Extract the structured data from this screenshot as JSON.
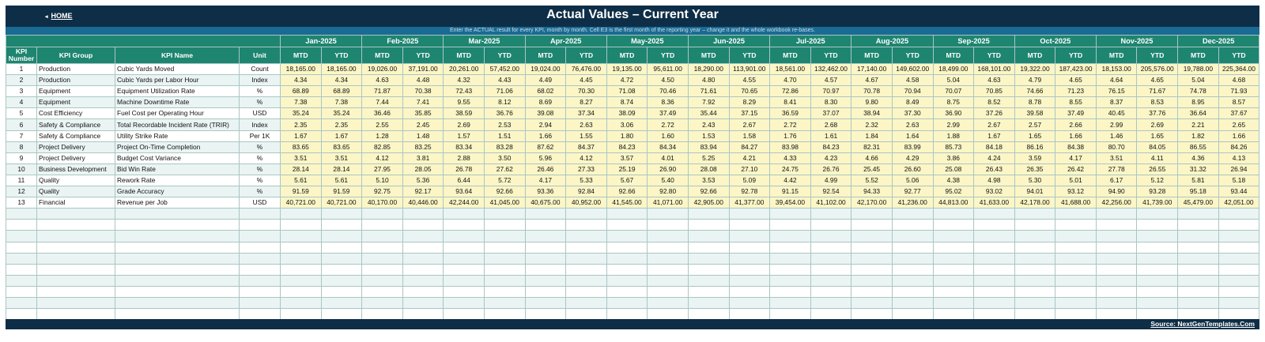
{
  "header": {
    "home_arrow": "◂",
    "home_label": "HOME",
    "title": "Actual Values  –  Current Year",
    "instructions": "Enter the ACTUAL result for every KPI, month by month. Cell E3 is the first month of the reporting year – change it and the whole workbook re-bases."
  },
  "table": {
    "col_kpi_number": "KPI Number",
    "col_kpi_group": "KPI Group",
    "col_kpi_name": "KPI Name",
    "col_unit": "Unit",
    "mtd_label": "MTD",
    "ytd_label": "YTD",
    "months": [
      "Jan-2025",
      "Feb-2025",
      "Mar-2025",
      "Apr-2025",
      "May-2025",
      "Jun-2025",
      "Jul-2025",
      "Aug-2025",
      "Sep-2025",
      "Oct-2025",
      "Nov-2025",
      "Dec-2025"
    ],
    "rows": [
      {
        "num": "1",
        "group": "Production",
        "name": "Cubic Yards Moved",
        "unit": "Count",
        "values": [
          "18,165.00",
          "18,165.00",
          "19,026.00",
          "37,191.00",
          "20,261.00",
          "57,452.00",
          "19,024.00",
          "76,476.00",
          "19,135.00",
          "95,611.00",
          "18,290.00",
          "113,901.00",
          "18,561.00",
          "132,462.00",
          "17,140.00",
          "149,602.00",
          "18,499.00",
          "168,101.00",
          "19,322.00",
          "187,423.00",
          "18,153.00",
          "205,576.00",
          "19,788.00",
          "225,364.00"
        ]
      },
      {
        "num": "2",
        "group": "Production",
        "name": "Cubic Yards per Labor Hour",
        "unit": "Index",
        "values": [
          "4.34",
          "4.34",
          "4.63",
          "4.48",
          "4.32",
          "4.43",
          "4.49",
          "4.45",
          "4.72",
          "4.50",
          "4.80",
          "4.55",
          "4.70",
          "4.57",
          "4.67",
          "4.58",
          "5.04",
          "4.63",
          "4.79",
          "4.65",
          "4.64",
          "4.65",
          "5.04",
          "4.68"
        ]
      },
      {
        "num": "3",
        "group": "Equipment",
        "name": "Equipment Utilization Rate",
        "unit": "%",
        "values": [
          "68.89",
          "68.89",
          "71.87",
          "70.38",
          "72.43",
          "71.06",
          "68.02",
          "70.30",
          "71.08",
          "70.46",
          "71.61",
          "70.65",
          "72.86",
          "70.97",
          "70.78",
          "70.94",
          "70.07",
          "70.85",
          "74.66",
          "71.23",
          "76.15",
          "71.67",
          "74.78",
          "71.93"
        ]
      },
      {
        "num": "4",
        "group": "Equipment",
        "name": "Machine Downtime Rate",
        "unit": "%",
        "values": [
          "7.38",
          "7.38",
          "7.44",
          "7.41",
          "9.55",
          "8.12",
          "8.69",
          "8.27",
          "8.74",
          "8.36",
          "7.92",
          "8.29",
          "8.41",
          "8.30",
          "9.80",
          "8.49",
          "8.75",
          "8.52",
          "8.78",
          "8.55",
          "8.37",
          "8.53",
          "8.95",
          "8.57"
        ]
      },
      {
        "num": "5",
        "group": "Cost Efficiency",
        "name": "Fuel Cost per Operating Hour",
        "unit": "USD",
        "values": [
          "35.24",
          "35.24",
          "36.46",
          "35.85",
          "38.59",
          "36.76",
          "39.08",
          "37.34",
          "38.09",
          "37.49",
          "35.44",
          "37.15",
          "36.59",
          "37.07",
          "38.94",
          "37.30",
          "36.90",
          "37.26",
          "39.58",
          "37.49",
          "40.45",
          "37.76",
          "36.64",
          "37.67"
        ]
      },
      {
        "num": "6",
        "group": "Safety & Compliance",
        "name": "Total Recordable Incident Rate (TRIR)",
        "unit": "Index",
        "values": [
          "2.35",
          "2.35",
          "2.55",
          "2.45",
          "2.69",
          "2.53",
          "2.94",
          "2.63",
          "3.06",
          "2.72",
          "2.43",
          "2.67",
          "2.72",
          "2.68",
          "2.32",
          "2.63",
          "2.99",
          "2.67",
          "2.57",
          "2.66",
          "2.99",
          "2.69",
          "2.21",
          "2.65"
        ]
      },
      {
        "num": "7",
        "group": "Safety & Compliance",
        "name": "Utility Strike Rate",
        "unit": "Per 1K",
        "values": [
          "1.67",
          "1.67",
          "1.28",
          "1.48",
          "1.57",
          "1.51",
          "1.66",
          "1.55",
          "1.80",
          "1.60",
          "1.53",
          "1.58",
          "1.76",
          "1.61",
          "1.84",
          "1.64",
          "1.88",
          "1.67",
          "1.65",
          "1.66",
          "1.46",
          "1.65",
          "1.82",
          "1.66"
        ]
      },
      {
        "num": "8",
        "group": "Project Delivery",
        "name": "Project On-Time Completion",
        "unit": "%",
        "values": [
          "83.65",
          "83.65",
          "82.85",
          "83.25",
          "83.34",
          "83.28",
          "87.62",
          "84.37",
          "84.23",
          "84.34",
          "83.94",
          "84.27",
          "83.98",
          "84.23",
          "82.31",
          "83.99",
          "85.73",
          "84.18",
          "86.16",
          "84.38",
          "80.70",
          "84.05",
          "86.55",
          "84.26"
        ]
      },
      {
        "num": "9",
        "group": "Project Delivery",
        "name": "Budget Cost Variance",
        "unit": "%",
        "values": [
          "3.51",
          "3.51",
          "4.12",
          "3.81",
          "2.88",
          "3.50",
          "5.96",
          "4.12",
          "3.57",
          "4.01",
          "5.25",
          "4.21",
          "4.33",
          "4.23",
          "4.66",
          "4.29",
          "3.86",
          "4.24",
          "3.59",
          "4.17",
          "3.51",
          "4.11",
          "4.36",
          "4.13"
        ]
      },
      {
        "num": "10",
        "group": "Business Development",
        "name": "Bid Win Rate",
        "unit": "%",
        "values": [
          "28.14",
          "28.14",
          "27.95",
          "28.05",
          "26.78",
          "27.62",
          "26.46",
          "27.33",
          "25.19",
          "26.90",
          "28.08",
          "27.10",
          "24.75",
          "26.76",
          "25.45",
          "26.60",
          "25.08",
          "26.43",
          "26.35",
          "26.42",
          "27.78",
          "26.55",
          "31.32",
          "26.94"
        ]
      },
      {
        "num": "11",
        "group": "Quality",
        "name": "Rework Rate",
        "unit": "%",
        "values": [
          "5.61",
          "5.61",
          "5.10",
          "5.36",
          "6.44",
          "5.72",
          "4.17",
          "5.33",
          "5.67",
          "5.40",
          "3.53",
          "5.09",
          "4.42",
          "4.99",
          "5.52",
          "5.06",
          "4.38",
          "4.98",
          "5.30",
          "5.01",
          "6.17",
          "5.12",
          "5.81",
          "5.18"
        ]
      },
      {
        "num": "12",
        "group": "Quality",
        "name": "Grade Accuracy",
        "unit": "%",
        "values": [
          "91.59",
          "91.59",
          "92.75",
          "92.17",
          "93.64",
          "92.66",
          "93.36",
          "92.84",
          "92.66",
          "92.80",
          "92.66",
          "92.78",
          "91.15",
          "92.54",
          "94.33",
          "92.77",
          "95.02",
          "93.02",
          "94.01",
          "93.12",
          "94.90",
          "93.28",
          "95.18",
          "93.44"
        ]
      },
      {
        "num": "13",
        "group": "Financial",
        "name": "Revenue per Job",
        "unit": "USD",
        "values": [
          "40,721.00",
          "40,721.00",
          "40,170.00",
          "40,446.00",
          "42,244.00",
          "41,045.00",
          "40,675.00",
          "40,952.00",
          "41,545.00",
          "41,071.00",
          "42,905.00",
          "41,377.00",
          "39,454.00",
          "41,102.00",
          "42,170.00",
          "41,236.00",
          "44,813.00",
          "41,633.00",
          "42,178.00",
          "41,688.00",
          "42,256.00",
          "41,739.00",
          "45,479.00",
          "42,051.00"
        ]
      }
    ]
  },
  "footer": {
    "source": "Source: NextGenTemplates.Com"
  },
  "colors": {
    "title_bar": "#0e2e47",
    "info_bar": "#1a6b93",
    "header_teal": "#1e8570",
    "value_cell": "#fcf6c6",
    "alt_row": "#eaf4f3"
  }
}
